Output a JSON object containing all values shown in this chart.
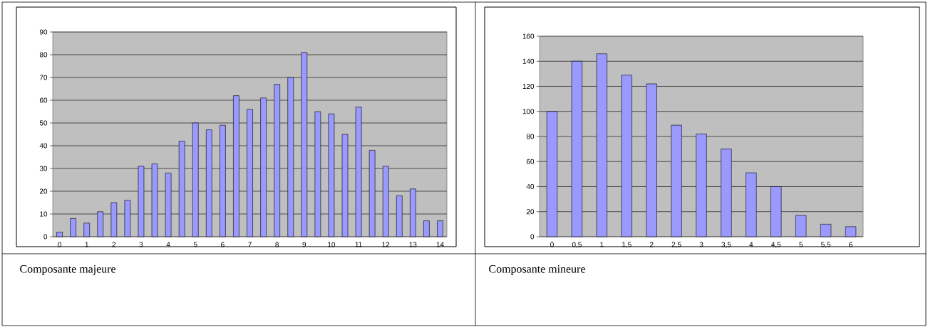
{
  "chart_data": [
    {
      "type": "bar",
      "categories": [
        "0",
        null,
        "1",
        null,
        "2",
        null,
        "3",
        null,
        "4",
        null,
        "5",
        null,
        "6",
        null,
        "7",
        null,
        "8",
        null,
        "9",
        null,
        "10",
        null,
        "11",
        null,
        "12",
        null,
        "13",
        null,
        "14"
      ],
      "values": [
        2,
        8,
        6,
        11,
        15,
        16,
        31,
        32,
        28,
        42,
        50,
        47,
        49,
        62,
        56,
        61,
        67,
        70,
        81,
        55,
        54,
        45,
        57,
        38,
        31,
        18,
        21,
        7,
        7
      ],
      "color": "#9999ff",
      "ylim": [
        0,
        90
      ],
      "yticks": [
        0,
        10,
        20,
        30,
        40,
        50,
        60,
        70,
        80,
        90
      ],
      "grid": "y",
      "annotations": [
        "Composante majeure"
      ]
    },
    {
      "type": "bar",
      "categories": [
        "0",
        "0,5",
        "1",
        "1,5",
        "2",
        "2,5",
        "3",
        "3,5",
        "4",
        "4,5",
        "5",
        "5,5",
        "6"
      ],
      "values": [
        100,
        140,
        146,
        129,
        122,
        89,
        82,
        70,
        51,
        40,
        17,
        10,
        8
      ],
      "color": "#9999ff",
      "ylim": [
        0,
        160
      ],
      "yticks": [
        0,
        20,
        40,
        60,
        80,
        100,
        120,
        140,
        160
      ],
      "grid": "y",
      "annotations": [
        "Composante mineure"
      ]
    }
  ]
}
